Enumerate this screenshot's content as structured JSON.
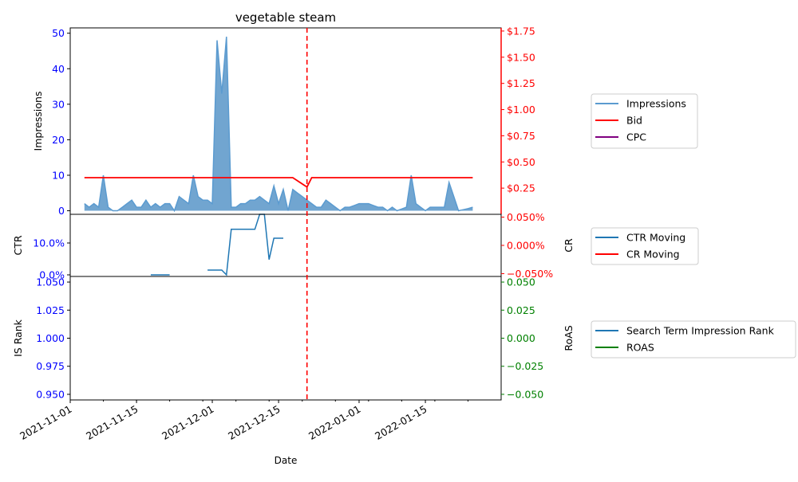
{
  "chart_data": [
    {
      "panel": "top",
      "type": "area",
      "title": "vegetable steam",
      "ylabel_left": "Impressions",
      "ylabel_right": "",
      "ylim_left": [
        -1,
        51.5
      ],
      "ylim_right": [
        0,
        1.78
      ],
      "left_ticks": [
        "0",
        "10",
        "20",
        "30",
        "40",
        "50"
      ],
      "left_tick_values": [
        0,
        10,
        20,
        30,
        40,
        50
      ],
      "right_ticks": [
        "$0.25",
        "$0.50",
        "$0.75",
        "$1.00",
        "$1.25",
        "$1.50",
        "$1.75"
      ],
      "right_tick_values": [
        0.25,
        0.5,
        0.75,
        1.0,
        1.25,
        1.5,
        1.75
      ],
      "legend": [
        "Impressions",
        "Bid",
        "CPC"
      ],
      "legend_colors": [
        "#5b9bd0",
        "#ff0000",
        "#800080"
      ],
      "series": [
        {
          "name": "Impressions",
          "axis": "left",
          "color": "#5b9bd0",
          "fill": "#4e8fc4",
          "x": [
            "2021-11-04",
            "2021-11-05",
            "2021-11-06",
            "2021-11-07",
            "2021-11-08",
            "2021-11-09",
            "2021-11-10",
            "2021-11-11",
            "2021-11-12",
            "2021-11-13",
            "2021-11-14",
            "2021-11-15",
            "2021-11-16",
            "2021-11-17",
            "2021-11-18",
            "2021-11-19",
            "2021-11-20",
            "2021-11-21",
            "2021-11-22",
            "2021-11-23",
            "2021-11-24",
            "2021-11-25",
            "2021-11-26",
            "2021-11-27",
            "2021-11-28",
            "2021-11-29",
            "2021-11-30",
            "2021-12-01",
            "2021-12-02",
            "2021-12-03",
            "2021-12-04",
            "2021-12-05",
            "2021-12-06",
            "2021-12-07",
            "2021-12-08",
            "2021-12-09",
            "2021-12-10",
            "2021-12-11",
            "2021-12-12",
            "2021-12-13",
            "2021-12-14",
            "2021-12-15",
            "2021-12-16",
            "2021-12-17",
            "2021-12-18",
            "2021-12-19",
            "2021-12-20",
            "2021-12-21",
            "2021-12-22",
            "2021-12-23",
            "2021-12-24",
            "2021-12-25",
            "2021-12-26",
            "2021-12-27",
            "2021-12-28",
            "2021-12-29",
            "2021-12-30",
            "2021-12-31",
            "2022-01-01",
            "2022-01-02",
            "2022-01-03",
            "2022-01-04",
            "2022-01-05",
            "2022-01-06",
            "2022-01-07",
            "2022-01-08",
            "2022-01-09",
            "2022-01-10",
            "2022-01-11",
            "2022-01-12",
            "2022-01-13",
            "2022-01-14",
            "2022-01-15",
            "2022-01-16",
            "2022-01-17",
            "2022-01-18",
            "2022-01-19",
            "2022-01-20",
            "2022-01-21",
            "2022-01-22",
            "2022-01-23",
            "2022-01-24",
            "2022-01-25"
          ],
          "values": [
            2,
            1,
            2,
            1,
            10,
            1,
            0,
            0,
            1,
            2,
            3,
            1,
            1,
            3,
            1,
            2,
            1,
            2,
            2,
            0,
            4,
            3,
            2,
            10,
            4,
            3,
            3,
            2,
            48,
            33,
            49,
            1,
            1,
            2,
            2,
            3,
            3,
            4,
            3,
            2,
            7,
            2,
            6,
            0,
            6,
            5,
            4,
            3,
            2,
            1,
            1,
            3,
            2,
            1,
            0,
            1,
            1,
            1.5,
            2,
            2,
            2,
            1.5,
            1,
            1,
            0,
            1,
            0,
            0.5,
            1,
            10,
            2,
            1,
            0,
            1,
            1,
            1,
            1,
            8,
            4,
            0,
            0.3,
            0.6,
            1
          ]
        },
        {
          "name": "Bid",
          "axis": "right",
          "color": "#ff0000",
          "x": [
            "2021-11-04",
            "2021-12-18",
            "2021-12-21",
            "2021-12-22",
            "2022-01-25"
          ],
          "values": [
            0.35,
            0.35,
            0.26,
            0.35,
            0.35
          ]
        },
        {
          "name": "CPC",
          "axis": "right",
          "color": "#800080",
          "x": [],
          "values": []
        }
      ]
    },
    {
      "panel": "middle",
      "type": "line",
      "ylabel_left": "CTR",
      "ylabel_right": "CR",
      "ylim_left": [
        -0.005,
        0.19
      ],
      "ylim_right": [
        -0.055,
        0.055
      ],
      "left_ticks": [
        "0.0%",
        "10.0%"
      ],
      "left_tick_values": [
        0,
        0.1
      ],
      "right_ticks": [
        "−0.050%",
        "0.000%",
        "0.050%"
      ],
      "right_tick_values": [
        -0.05,
        0,
        0.05
      ],
      "legend": [
        "CTR Moving",
        "CR Moving"
      ],
      "legend_colors": [
        "#1f77b4",
        "#ff0000"
      ],
      "series": [
        {
          "name": "CTR Moving",
          "axis": "left",
          "color": "#1f77b4",
          "segments": [
            {
              "x": [
                "2021-11-18",
                "2021-11-22"
              ],
              "values": [
                0,
                0
              ]
            },
            {
              "x": [
                "2021-11-30",
                "2021-12-03",
                "2021-12-04",
                "2021-12-05",
                "2021-12-10",
                "2021-12-11",
                "2021-12-12",
                "2021-12-13",
                "2021-12-14",
                "2021-12-16"
              ],
              "values": [
                0.015,
                0.015,
                0,
                0.143,
                0.143,
                0.19,
                0.19,
                0.048,
                0.115,
                0.115
              ]
            }
          ]
        },
        {
          "name": "CR Moving",
          "axis": "right",
          "color": "#ff0000",
          "segments": []
        }
      ]
    },
    {
      "panel": "bottom",
      "type": "line",
      "xlabel": "Date",
      "ylabel_left": "IS Rank",
      "ylabel_right": "RoAS",
      "ylim_left": [
        0.945,
        1.055
      ],
      "ylim_right": [
        -0.055,
        0.055
      ],
      "left_ticks": [
        "0.950",
        "0.975",
        "1.000",
        "1.025",
        "1.050"
      ],
      "left_tick_values": [
        0.95,
        0.975,
        1.0,
        1.025,
        1.05
      ],
      "right_ticks": [
        "−0.050",
        "−0.025",
        "0.000",
        "0.025",
        "0.050"
      ],
      "right_tick_values": [
        -0.05,
        -0.025,
        0,
        0.025,
        0.05
      ],
      "legend": [
        "Search Term Impression Rank",
        "ROAS"
      ],
      "legend_colors": [
        "#1f77b4",
        "#008000"
      ],
      "series": [
        {
          "name": "Search Term Impression Rank",
          "axis": "left",
          "color": "#1f77b4",
          "x": [],
          "values": []
        },
        {
          "name": "ROAS",
          "axis": "right",
          "color": "#008000",
          "x": [],
          "values": []
        }
      ]
    }
  ],
  "x_axis": {
    "min": "2021-11-01",
    "max": "2022-01-31",
    "tick_labels": [
      "2021-11-01",
      "2021-11-15",
      "2021-12-01",
      "2021-12-15",
      "2022-01-01",
      "2022-01-15"
    ],
    "tick_values": [
      "2021-11-01",
      "2021-11-15",
      "2021-12-01",
      "2021-12-15",
      "2022-01-01",
      "2022-01-15"
    ]
  },
  "vline": {
    "x": "2021-12-21",
    "color": "#ff0000",
    "style": "dashed"
  },
  "colors": {
    "left_axis_ticks": "#0000ff",
    "top_right_ticks": "#ff0000",
    "middle_right_ticks": "#ff0000",
    "bottom_right_ticks": "#008000"
  }
}
